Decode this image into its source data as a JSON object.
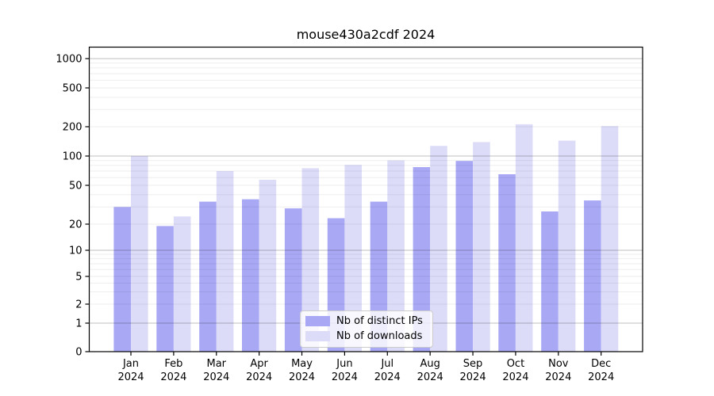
{
  "figure": {
    "background": "#ffffff"
  },
  "chart_data": {
    "type": "bar",
    "title": "mouse430a2cdf 2024",
    "categories": [
      "Jan",
      "Feb",
      "Mar",
      "Apr",
      "May",
      "Jun",
      "Jul",
      "Aug",
      "Sep",
      "Oct",
      "Nov",
      "Dec"
    ],
    "category_year_line": "2024",
    "series": [
      {
        "name": "Nb of distinct IPs",
        "color": "#a8a8f5",
        "values": [
          30,
          19,
          34,
          36,
          29,
          23,
          34,
          77,
          89,
          65,
          27,
          35
        ]
      },
      {
        "name": "Nb of downloads",
        "color": "#dcdcf8",
        "values": [
          100,
          24,
          70,
          57,
          75,
          81,
          90,
          127,
          139,
          212,
          144,
          203
        ]
      }
    ],
    "y_ticks": [
      0,
      1,
      2,
      5,
      10,
      20,
      50,
      100,
      200,
      500,
      1000
    ],
    "y_scale": "log-with-zero",
    "ylim": [
      0,
      1300
    ],
    "grid": true,
    "legend_position": "lower center"
  }
}
